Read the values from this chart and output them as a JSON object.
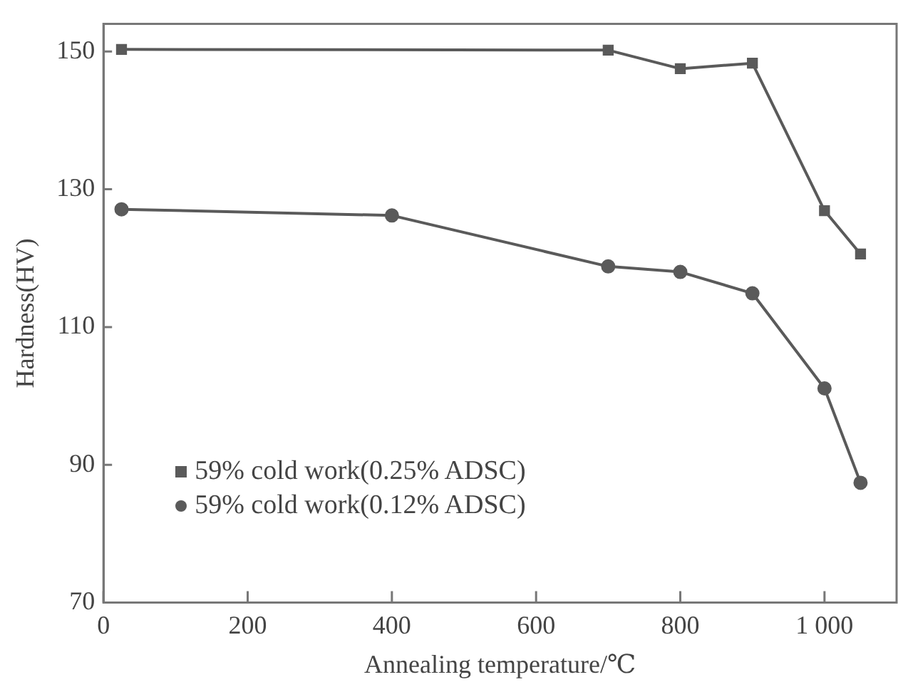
{
  "chart_data": {
    "type": "line",
    "xlabel": "Annealing temperature/℃",
    "ylabel": "Hardness(HV)",
    "xlim": [
      0,
      1100
    ],
    "xticks": [
      0,
      200,
      400,
      600,
      800,
      {
        "value": 1000,
        "label": "1 000"
      }
    ],
    "ylim": [
      70,
      154
    ],
    "yticks": [
      70,
      90,
      110,
      130,
      150
    ],
    "grid": false,
    "legend": "bottom left",
    "line_style": "solid",
    "series": [
      {
        "name": "59% cold work(0.25% ADSC)",
        "color": "#5a5a5a",
        "marker": "square",
        "x": [
          25,
          700,
          800,
          900,
          1000,
          1050
        ],
        "values": [
          150.3,
          150.2,
          147.5,
          148.3,
          126.9,
          120.6
        ]
      },
      {
        "name": "59% cold work(0.12% ADSC)",
        "color": "#5a5a5a",
        "marker": "circle",
        "x": [
          25,
          400,
          700,
          800,
          900,
          1000,
          1050
        ],
        "values": [
          127.1,
          126.2,
          118.8,
          118,
          114.9,
          101.1,
          87.4
        ]
      }
    ]
  }
}
